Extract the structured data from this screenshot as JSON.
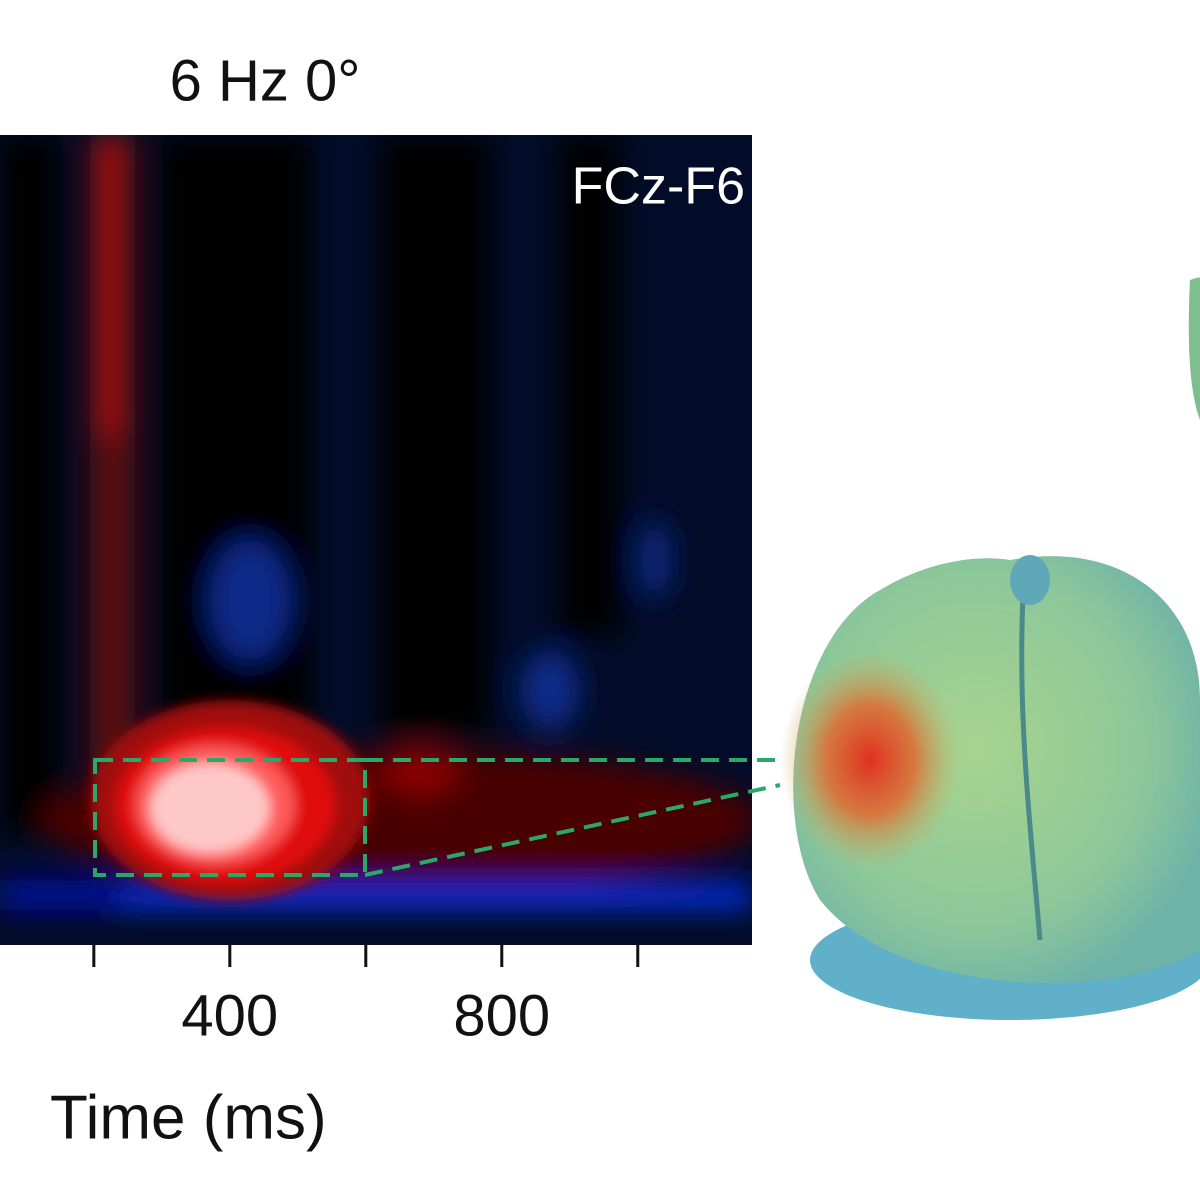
{
  "chart_data": {
    "type": "spectrogram",
    "title": "6 Hz 0°",
    "annotation": "FCz-F6",
    "xlabel": "Time (ms)",
    "xlim": [
      62,
      1168
    ],
    "xticks": [
      400,
      800
    ],
    "xminorticks": [
      200,
      600,
      1000
    ]
  }
}
